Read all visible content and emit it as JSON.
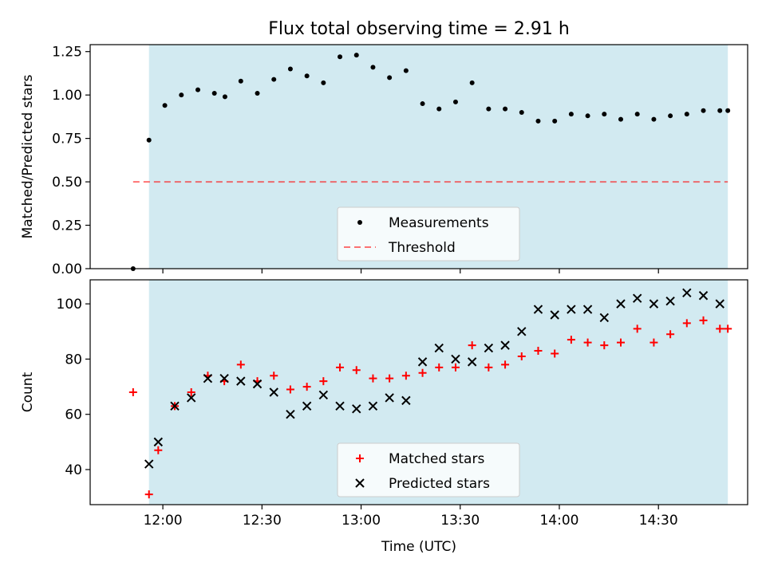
{
  "title": "Flux total observing time = 2.91 h",
  "colors": {
    "observing_span": "#add8e6",
    "measurement": "#000000",
    "threshold": "#ff0000",
    "matched": "#ff0000",
    "predicted": "#000000"
  },
  "chart_data": [
    {
      "type": "scatter",
      "panel": "top",
      "ylabel": "Matched/Predicted stars",
      "xlabel": "",
      "xlim": [
        11.6333,
        14.95
      ],
      "ylim": [
        0.0,
        1.29
      ],
      "yticks": [
        0.0,
        0.25,
        0.5,
        0.75,
        1.0,
        1.25
      ],
      "ytick_labels": [
        "0.00",
        "0.25",
        "0.50",
        "0.75",
        "1.00",
        "1.25"
      ],
      "xticks": [
        12.0,
        12.5,
        13.0,
        13.5,
        14.0,
        14.5
      ],
      "observing_span": [
        11.93,
        14.85
      ],
      "legend_position": "lower-center",
      "legend": [
        "Measurements",
        "Threshold"
      ],
      "threshold": {
        "name": "Threshold",
        "y": 0.5,
        "x_range": [
          11.85,
          14.85
        ]
      },
      "series": [
        {
          "name": "Measurements",
          "marker": "dot",
          "x": [
            11.85,
            11.93,
            12.01,
            12.0933,
            12.1767,
            12.26,
            12.3133,
            12.3933,
            12.4767,
            12.56,
            12.6433,
            12.7267,
            12.81,
            12.8933,
            12.9767,
            13.06,
            13.1433,
            13.2267,
            13.31,
            13.3933,
            13.4767,
            13.56,
            13.6433,
            13.7267,
            13.81,
            13.8933,
            13.9767,
            14.06,
            14.1433,
            14.2267,
            14.31,
            14.3933,
            14.4767,
            14.56,
            14.6433,
            14.7267,
            14.81,
            14.85
          ],
          "y": [
            0.0,
            0.74,
            0.94,
            1.0,
            1.03,
            1.01,
            0.99,
            1.08,
            1.01,
            1.09,
            1.15,
            1.11,
            1.07,
            1.22,
            1.23,
            1.16,
            1.1,
            1.14,
            0.95,
            0.92,
            0.96,
            1.07,
            0.92,
            0.92,
            0.9,
            0.85,
            0.85,
            0.89,
            0.88,
            0.89,
            0.86,
            0.89,
            0.86,
            0.88,
            0.89,
            0.91,
            0.91,
            0.91
          ]
        }
      ]
    },
    {
      "type": "scatter",
      "panel": "bottom",
      "xlabel": "Time (UTC)",
      "ylabel": "Count",
      "xlim": [
        11.6333,
        14.95
      ],
      "ylim": [
        27.3,
        108.7
      ],
      "yticks": [
        40,
        60,
        80,
        100
      ],
      "xticks": [
        12.0,
        12.5,
        13.0,
        13.5,
        14.0,
        14.5
      ],
      "xtick_labels": [
        "12:00",
        "12:30",
        "13:00",
        "13:30",
        "14:00",
        "14:30"
      ],
      "observing_span": [
        11.93,
        14.85
      ],
      "legend_position": "lower-center",
      "legend": [
        "Matched stars",
        "Predicted stars"
      ],
      "series": [
        {
          "name": "Matched stars",
          "marker": "plus",
          "x": [
            11.85,
            11.93,
            11.9767,
            12.06,
            12.1433,
            12.2267,
            12.31,
            12.3933,
            12.4767,
            12.56,
            12.6433,
            12.7267,
            12.81,
            12.8933,
            12.9767,
            13.06,
            13.1433,
            13.2267,
            13.31,
            13.3933,
            13.4767,
            13.56,
            13.6433,
            13.7267,
            13.81,
            13.8933,
            13.9767,
            14.06,
            14.1433,
            14.2267,
            14.31,
            14.3933,
            14.4767,
            14.56,
            14.6433,
            14.7267,
            14.81,
            14.85
          ],
          "y": [
            68,
            31,
            47,
            63,
            68,
            74,
            72,
            78,
            72,
            74,
            69,
            70,
            72,
            77,
            76,
            73,
            73,
            74,
            75,
            77,
            77,
            85,
            77,
            78,
            81,
            83,
            82,
            87,
            86,
            85,
            86,
            91,
            86,
            89,
            93,
            94,
            91,
            91
          ]
        },
        {
          "name": "Predicted stars",
          "marker": "x",
          "x": [
            11.93,
            11.9767,
            12.06,
            12.1433,
            12.2267,
            12.31,
            12.3933,
            12.4767,
            12.56,
            12.6433,
            12.7267,
            12.81,
            12.8933,
            12.9767,
            13.06,
            13.1433,
            13.2267,
            13.31,
            13.3933,
            13.4767,
            13.56,
            13.6433,
            13.7267,
            13.81,
            13.8933,
            13.9767,
            14.06,
            14.1433,
            14.2267,
            14.31,
            14.3933,
            14.4767,
            14.56,
            14.6433,
            14.7267,
            14.81
          ],
          "y": [
            42,
            50,
            63,
            66,
            73,
            73,
            72,
            71,
            68,
            60,
            63,
            67,
            63,
            62,
            63,
            66,
            65,
            79,
            84,
            80,
            79,
            84,
            85,
            90,
            98,
            96,
            98,
            98,
            95,
            100,
            102,
            100,
            101,
            104,
            103,
            100
          ]
        }
      ]
    }
  ]
}
